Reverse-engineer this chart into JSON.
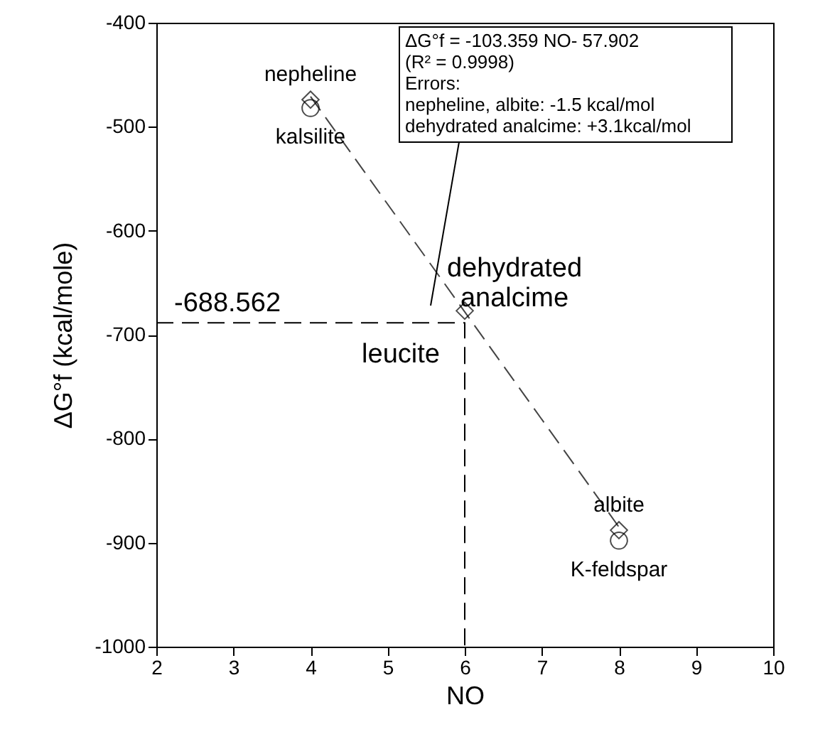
{
  "chart_data": {
    "type": "scatter",
    "xlabel": "NO",
    "ylabel": "ΔG°f (kcal/mole)",
    "xlim": [
      2,
      10
    ],
    "xticks": [
      2,
      3,
      4,
      5,
      6,
      7,
      8,
      9,
      10
    ],
    "ylim": [
      -1000,
      -400
    ],
    "yticks": [
      -1000,
      -900,
      -800,
      -700,
      -600,
      -500,
      -400
    ],
    "grid": false,
    "series": [
      {
        "type": "line",
        "color": "#444444",
        "line_style": "dashed",
        "marker": "none",
        "x": [
          4,
          8
        ],
        "values": [
          -471,
          -885
        ]
      },
      {
        "type": "line",
        "color": "#000000",
        "line_style": "dashed",
        "marker": "none",
        "x": [
          2,
          6,
          6
        ],
        "values": [
          -688.562,
          -688.562,
          -1000
        ]
      },
      {
        "type": "scatter",
        "color": "#000000",
        "marker": "diamond",
        "x": [
          4,
          6,
          8
        ],
        "values": [
          -474,
          -677,
          -888
        ]
      },
      {
        "type": "scatter",
        "color": "#000000",
        "marker": "circle",
        "x": [
          4,
          8
        ],
        "values": [
          -482,
          -898
        ]
      }
    ],
    "annotations": [
      "ΔG°f = -103.359 NO- 57.902\n(R² = 0.9998)\nErrors:\nnepheline, albite: -1.5 kcal/mol\ndehydrated analcime: +3.1kcal/mol",
      {
        "text": "nepheline",
        "x": 4,
        "y": -474
      },
      {
        "text": "kalsilite",
        "x": 4,
        "y": -482
      },
      {
        "text": "dehydrated\nanalcime",
        "x": 6,
        "y": -677
      },
      {
        "text": "albite",
        "x": 8,
        "y": -888
      },
      {
        "text": "K-feldspar",
        "x": 8,
        "y": -898
      },
      {
        "text": "-688.562",
        "x": 2,
        "y": -688.562
      },
      {
        "text": "leucite",
        "x": 6,
        "y": -688.562
      }
    ]
  }
}
